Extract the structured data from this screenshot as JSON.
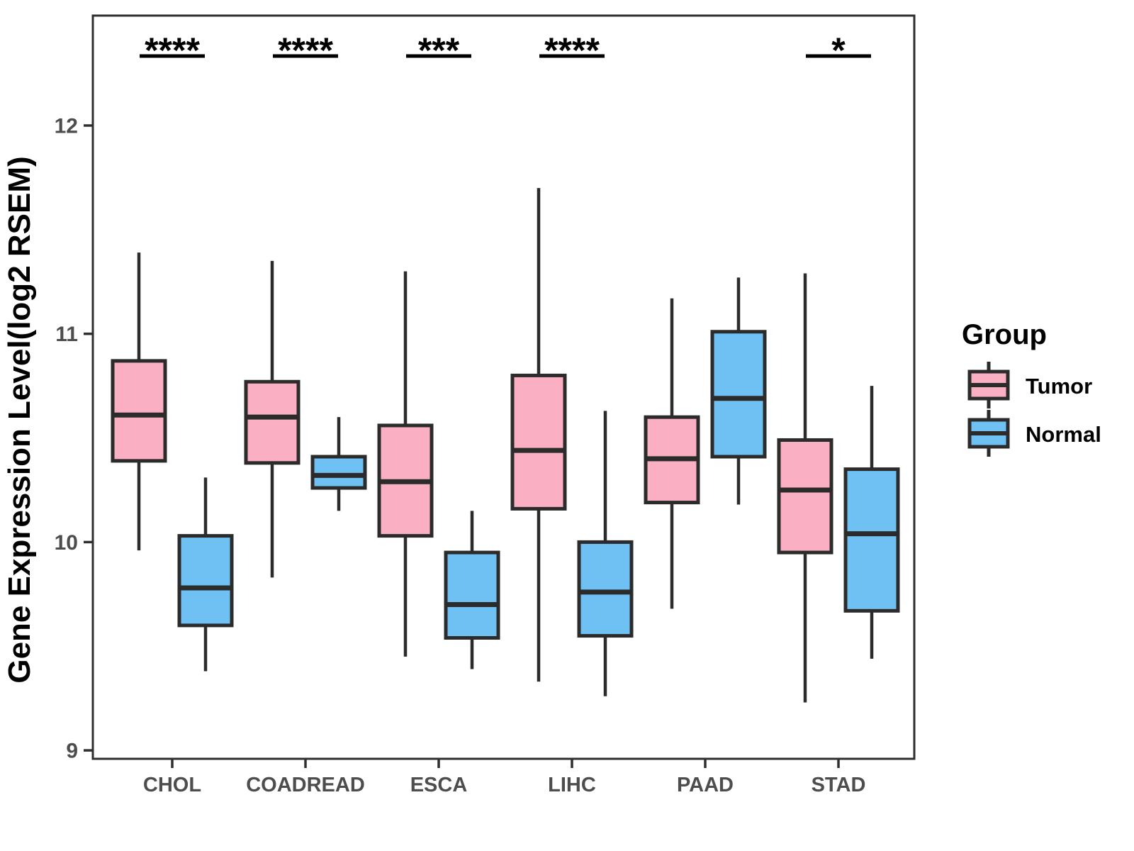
{
  "legend": {
    "title": "Group",
    "position": "right",
    "items": [
      {
        "label": "Tumor",
        "color": "#FBAFC2"
      },
      {
        "label": "Normal",
        "color": "#6FC0F3"
      }
    ]
  },
  "chart_data": {
    "type": "boxplot",
    "title": "",
    "xlabel": "",
    "ylabel": "Gene Expression Level(log2 RSEM)",
    "categories": [
      "CHOL",
      "COADREAD",
      "ESCA",
      "LIHC",
      "PAAD",
      "STAD"
    ],
    "groups": [
      "Tumor",
      "Normal"
    ],
    "y_ticks": [
      9,
      10,
      11,
      12
    ],
    "ylim": [
      8.95,
      12.55
    ],
    "grid": false,
    "legend_position": "right",
    "colors": {
      "tumor_fill": "#FBAFC2",
      "normal_fill": "#6FC0F3",
      "box_stroke": "#2B2B2B",
      "panel_stroke": "#2F2F2F",
      "tick_text": "#4d4d4d"
    },
    "significance": [
      {
        "category": "CHOL",
        "label": "****"
      },
      {
        "category": "COADREAD",
        "label": "****"
      },
      {
        "category": "ESCA",
        "label": "***"
      },
      {
        "category": "LIHC",
        "label": "****"
      },
      {
        "category": "STAD",
        "label": "*"
      }
    ],
    "series": [
      {
        "name": "Tumor",
        "color": "#FBAFC2",
        "boxes": [
          {
            "category": "CHOL",
            "min": 9.96,
            "q1": 10.39,
            "median": 10.61,
            "q3": 10.87,
            "max": 11.39
          },
          {
            "category": "COADREAD",
            "min": 9.83,
            "q1": 10.38,
            "median": 10.6,
            "q3": 10.77,
            "max": 11.35
          },
          {
            "category": "ESCA",
            "min": 9.45,
            "q1": 10.03,
            "median": 10.29,
            "q3": 10.56,
            "max": 11.3
          },
          {
            "category": "LIHC",
            "min": 9.33,
            "q1": 10.16,
            "median": 10.44,
            "q3": 10.8,
            "max": 11.7
          },
          {
            "category": "PAAD",
            "min": 9.68,
            "q1": 10.19,
            "median": 10.4,
            "q3": 10.6,
            "max": 11.17
          },
          {
            "category": "STAD",
            "min": 9.23,
            "q1": 9.95,
            "median": 10.25,
            "q3": 10.49,
            "max": 11.29
          }
        ]
      },
      {
        "name": "Normal",
        "color": "#6FC0F3",
        "boxes": [
          {
            "category": "CHOL",
            "min": 9.38,
            "q1": 9.6,
            "median": 9.78,
            "q3": 10.03,
            "max": 10.31
          },
          {
            "category": "COADREAD",
            "min": 10.15,
            "q1": 10.26,
            "median": 10.32,
            "q3": 10.41,
            "max": 10.6
          },
          {
            "category": "ESCA",
            "min": 9.39,
            "q1": 9.54,
            "median": 9.7,
            "q3": 9.95,
            "max": 10.15
          },
          {
            "category": "LIHC",
            "min": 9.26,
            "q1": 9.55,
            "median": 9.76,
            "q3": 10.0,
            "max": 10.63
          },
          {
            "category": "PAAD",
            "min": 10.18,
            "q1": 10.41,
            "median": 10.69,
            "q3": 11.01,
            "max": 11.27
          },
          {
            "category": "STAD",
            "min": 9.44,
            "q1": 9.67,
            "median": 10.04,
            "q3": 10.35,
            "max": 10.75
          }
        ]
      }
    ]
  }
}
